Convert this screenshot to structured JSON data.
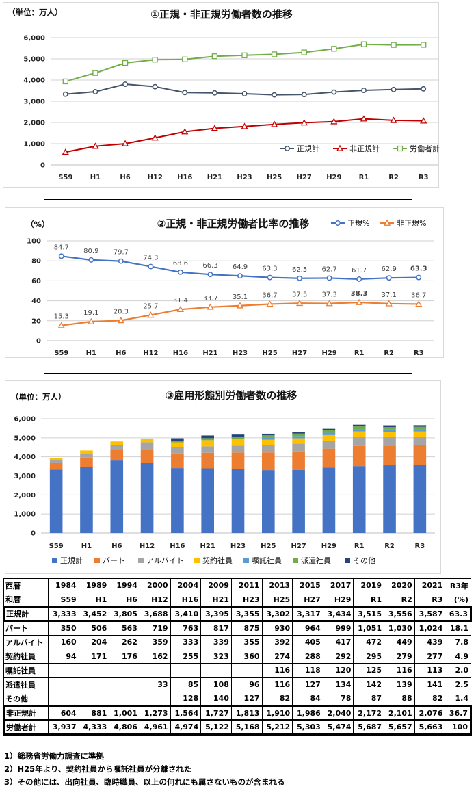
{
  "x_labels": [
    "S59",
    "H1",
    "H6",
    "H12",
    "H16",
    "H21",
    "H23",
    "H25",
    "H27",
    "H29",
    "R1",
    "R2",
    "R3"
  ],
  "chart_data": [
    {
      "type": "line",
      "title": "①正規・非正規労働者数の推移",
      "unit_label": "（単位：万人）",
      "categories": [
        "S59",
        "H1",
        "H6",
        "H12",
        "H16",
        "H21",
        "H23",
        "H25",
        "H27",
        "H29",
        "R1",
        "R2",
        "R3"
      ],
      "ylim": [
        0,
        6000
      ],
      "yticks": [
        "0",
        "1,000",
        "2,000",
        "3,000",
        "4,000",
        "5,000",
        "6,000"
      ],
      "legend_position": "bottom-right",
      "grid": true,
      "series": [
        {
          "name": "正規計",
          "color": "#44546a",
          "marker": "circle",
          "values": [
            3333,
            3452,
            3805,
            3688,
            3410,
            3395,
            3355,
            3302,
            3317,
            3434,
            3515,
            3556,
            3587
          ]
        },
        {
          "name": "非正規計",
          "color": "#c00000",
          "marker": "triangle",
          "values": [
            604,
            881,
            1001,
            1273,
            1564,
            1727,
            1813,
            1910,
            1986,
            2040,
            2172,
            2101,
            2076
          ]
        },
        {
          "name": "労働者計",
          "color": "#70ad47",
          "marker": "square",
          "values": [
            3937,
            4333,
            4806,
            4961,
            4974,
            5122,
            5168,
            5212,
            5303,
            5474,
            5687,
            5657,
            5663
          ]
        }
      ]
    },
    {
      "type": "line",
      "title": "②正規・非正規労働者比率の推移",
      "unit_label": "（%）",
      "categories": [
        "S59",
        "H1",
        "H6",
        "H12",
        "H16",
        "H21",
        "H23",
        "H25",
        "H27",
        "H29",
        "R1",
        "R2",
        "R3"
      ],
      "ylim": [
        0,
        100
      ],
      "yticks": [
        "0",
        "20",
        "40",
        "60",
        "80",
        "100"
      ],
      "legend_position": "top-right",
      "grid": true,
      "series": [
        {
          "name": "正規%",
          "color": "#4472c4",
          "marker": "circle",
          "values": [
            84.7,
            80.9,
            79.7,
            74.3,
            68.6,
            66.3,
            64.9,
            63.3,
            62.5,
            62.7,
            61.7,
            62.9,
            63.3
          ],
          "labels": [
            "84.7",
            "80.9",
            "79.7",
            "74.3",
            "68.6",
            "66.3",
            "64.9",
            "63.3",
            "62.5",
            "62.7",
            "61.7",
            "62.9",
            "63.3"
          ]
        },
        {
          "name": "非正規%",
          "color": "#ed7d31",
          "marker": "triangle",
          "values": [
            15.3,
            19.1,
            20.3,
            25.7,
            31.4,
            33.7,
            35.1,
            36.7,
            37.5,
            37.3,
            38.3,
            37.1,
            36.7
          ],
          "labels": [
            "15.3",
            "19.1",
            "20.3",
            "25.7",
            "31.4",
            "33.7",
            "35.1",
            "36.7",
            "37.5",
            "37.3",
            "38.3",
            "37.1",
            "36.7"
          ]
        }
      ],
      "highlights": [
        {
          "series": 1,
          "index": 10,
          "color": "#c00000"
        },
        {
          "series": 0,
          "index": 12,
          "color": "#1f3864"
        }
      ]
    },
    {
      "type": "bar",
      "stacked": true,
      "title": "③雇用形態別労働者数の推移",
      "unit_label": "（単位：万人）",
      "categories": [
        "S59",
        "H1",
        "H6",
        "H12",
        "H16",
        "H21",
        "H23",
        "H25",
        "H27",
        "H29",
        "R1",
        "R2",
        "R3"
      ],
      "ylim": [
        0,
        6000
      ],
      "yticks": [
        "0",
        "1,000",
        "2,000",
        "3,000",
        "4,000",
        "5,000",
        "6,000"
      ],
      "legend_position": "bottom",
      "grid": true,
      "series": [
        {
          "name": "正規計",
          "color": "#4472c4",
          "values": [
            3333,
            3452,
            3805,
            3688,
            3410,
            3395,
            3355,
            3302,
            3317,
            3434,
            3515,
            3556,
            3587
          ]
        },
        {
          "name": "パート",
          "color": "#ed7d31",
          "values": [
            350,
            506,
            563,
            719,
            763,
            817,
            875,
            930,
            964,
            999,
            1051,
            1030,
            1024
          ]
        },
        {
          "name": "アルバイト",
          "color": "#a5a5a5",
          "values": [
            160,
            204,
            262,
            359,
            333,
            339,
            355,
            392,
            405,
            417,
            472,
            449,
            439
          ]
        },
        {
          "name": "契約社員",
          "color": "#ffc000",
          "values": [
            94,
            171,
            176,
            162,
            255,
            323,
            360,
            274,
            288,
            292,
            295,
            279,
            277
          ]
        },
        {
          "name": "嘱託社員",
          "color": "#5b9bd5",
          "values": [
            0,
            0,
            0,
            0,
            0,
            0,
            0,
            116,
            118,
            120,
            125,
            116,
            113
          ]
        },
        {
          "name": "派遣社員",
          "color": "#70ad47",
          "values": [
            0,
            0,
            0,
            33,
            85,
            108,
            96,
            116,
            127,
            134,
            142,
            139,
            141
          ]
        },
        {
          "name": "その他",
          "color": "#264478",
          "values": [
            0,
            0,
            0,
            0,
            128,
            140,
            127,
            82,
            84,
            78,
            87,
            88,
            82
          ]
        }
      ]
    }
  ],
  "table": {
    "head1": [
      "西暦",
      "1984",
      "1989",
      "1994",
      "2000",
      "2004",
      "2009",
      "2011",
      "2013",
      "2015",
      "2017",
      "2019",
      "2020",
      "2021",
      "R3年"
    ],
    "head2": [
      "和暦",
      "S59",
      "H1",
      "H6",
      "H12",
      "H16",
      "H21",
      "H23",
      "H25",
      "H27",
      "H29",
      "R1",
      "R2",
      "R3",
      "(%)"
    ],
    "rows": [
      {
        "boxed": true,
        "cells": [
          "正規計",
          "3,333",
          "3,452",
          "3,805",
          "3,688",
          "3,410",
          "3,395",
          "3,355",
          "3,302",
          "3,317",
          "3,434",
          "3,515",
          "3,556",
          "3,587",
          "63.3"
        ]
      },
      {
        "boxed": false,
        "cells": [
          "パート",
          "350",
          "506",
          "563",
          "719",
          "763",
          "817",
          "875",
          "930",
          "964",
          "999",
          "1,051",
          "1,030",
          "1,024",
          "18.1"
        ]
      },
      {
        "boxed": false,
        "cells": [
          "アルバイト",
          "160",
          "204",
          "262",
          "359",
          "333",
          "339",
          "355",
          "392",
          "405",
          "417",
          "472",
          "449",
          "439",
          "7.8"
        ]
      },
      {
        "boxed": false,
        "cells": [
          "契約社員",
          "94",
          "171",
          "176",
          "162",
          "255",
          "323",
          "360",
          "274",
          "288",
          "292",
          "295",
          "279",
          "277",
          "4.9"
        ]
      },
      {
        "boxed": false,
        "cells": [
          "嘱託社員",
          "",
          "",
          "",
          "",
          "",
          "",
          "",
          "116",
          "118",
          "120",
          "125",
          "116",
          "113",
          "2.0"
        ]
      },
      {
        "boxed": false,
        "cells": [
          "派遣社員",
          "",
          "",
          "",
          "33",
          "85",
          "108",
          "96",
          "116",
          "127",
          "134",
          "142",
          "139",
          "141",
          "2.5"
        ]
      },
      {
        "boxed": false,
        "cells": [
          "その他",
          "",
          "",
          "",
          "",
          "128",
          "140",
          "127",
          "82",
          "84",
          "78",
          "87",
          "88",
          "82",
          "1.4"
        ]
      },
      {
        "boxed": true,
        "cells": [
          "非正規計",
          "604",
          "881",
          "1,001",
          "1,273",
          "1,564",
          "1,727",
          "1,813",
          "1,910",
          "1,986",
          "2,040",
          "2,172",
          "2,101",
          "2,076",
          "36.7"
        ]
      },
      {
        "boxed": true,
        "cells": [
          "労働者計",
          "3,937",
          "4,333",
          "4,806",
          "4,961",
          "4,974",
          "5,122",
          "5,168",
          "5,212",
          "5,303",
          "5,474",
          "5,687",
          "5,657",
          "5,663",
          "100"
        ]
      }
    ]
  },
  "notes": [
    "1）総務省労働力調査に準拠",
    "2）H25年より、契約社員から嘱託社員が分離された",
    "3）その他には、出向社員、臨時職員、以上の何れにも属さないものが含まれる"
  ]
}
